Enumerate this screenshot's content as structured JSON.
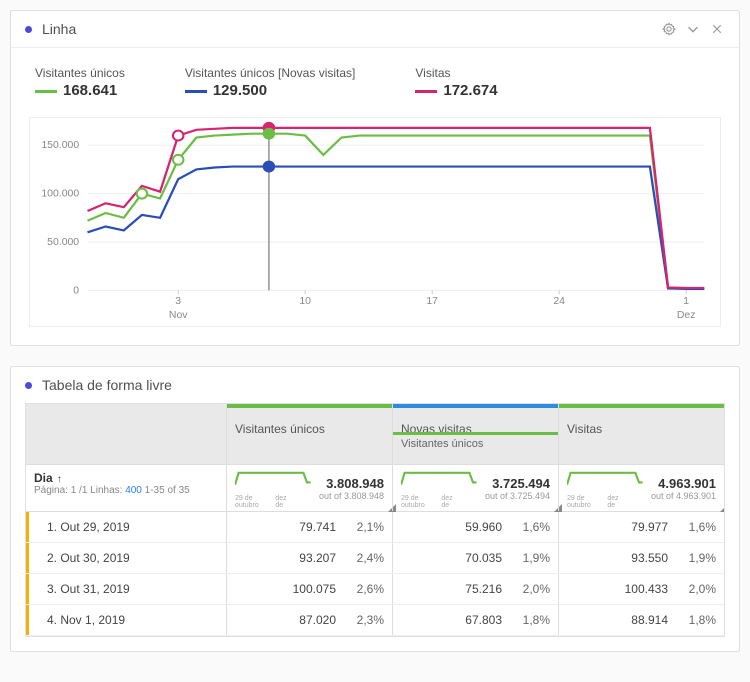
{
  "line_panel": {
    "title": "Linha",
    "dot_color": "#4b4bd8",
    "legend": [
      {
        "label": "Visitantes únicos",
        "value": "168.641",
        "color": "#6cbd45"
      },
      {
        "label": "Visitantes únicos [Novas visitas]",
        "value": "129.500",
        "color": "#2b4db8"
      },
      {
        "label": "Visitas",
        "value": "172.674",
        "color": "#d6246e"
      }
    ],
    "chart": {
      "ylim": [
        0,
        170000
      ],
      "yticks": [
        0,
        50000,
        100000,
        150000
      ],
      "ytick_labels": [
        "0",
        "50.000",
        "100.000",
        "150.000"
      ],
      "x_n": 35,
      "xticks": [
        5,
        12,
        19,
        26,
        33
      ],
      "xtick_labels": [
        "3",
        "10",
        "17",
        "24",
        "1"
      ],
      "month_labels": [
        {
          "x": 5,
          "label": "Nov"
        },
        {
          "x": 33,
          "label": "Dez"
        }
      ],
      "gridline_color": "#eeeeee",
      "cursor_x": 10,
      "cursor_color": "#999999",
      "markers": [
        {
          "series": 0,
          "x": 3,
          "y": 100000,
          "filled": false
        },
        {
          "series": 0,
          "x": 5,
          "y": 135000,
          "filled": false
        },
        {
          "series": 2,
          "x": 5,
          "y": 160000,
          "filled": false
        },
        {
          "series": 2,
          "x": 10,
          "y": 168000,
          "filled": true
        },
        {
          "series": 0,
          "x": 10,
          "y": 162000,
          "filled": true
        },
        {
          "series": 1,
          "x": 10,
          "y": 128000,
          "filled": true
        }
      ],
      "series": [
        {
          "color": "#6cbd45",
          "width": 2.2,
          "points": [
            [
              0,
              72000
            ],
            [
              1,
              80000
            ],
            [
              2,
              75000
            ],
            [
              3,
              100000
            ],
            [
              4,
              95000
            ],
            [
              5,
              135000
            ],
            [
              6,
              158000
            ],
            [
              7,
              160000
            ],
            [
              8,
              161000
            ],
            [
              9,
              162000
            ],
            [
              10,
              162000
            ],
            [
              11,
              162000
            ],
            [
              12,
              160000
            ],
            [
              13,
              140000
            ],
            [
              14,
              158000
            ],
            [
              15,
              160000
            ],
            [
              16,
              160000
            ],
            [
              17,
              160000
            ],
            [
              18,
              160000
            ],
            [
              19,
              160000
            ],
            [
              20,
              160000
            ],
            [
              21,
              160000
            ],
            [
              22,
              160000
            ],
            [
              23,
              160000
            ],
            [
              24,
              160000
            ],
            [
              25,
              160000
            ],
            [
              26,
              160000
            ],
            [
              27,
              160000
            ],
            [
              28,
              160000
            ],
            [
              29,
              160000
            ],
            [
              30,
              160000
            ],
            [
              31,
              160000
            ],
            [
              32,
              3000
            ],
            [
              33,
              2000
            ],
            [
              34,
              2000
            ]
          ]
        },
        {
          "color": "#2b4db8",
          "width": 2.2,
          "points": [
            [
              0,
              60000
            ],
            [
              1,
              66000
            ],
            [
              2,
              62000
            ],
            [
              3,
              78000
            ],
            [
              4,
              75000
            ],
            [
              5,
              115000
            ],
            [
              6,
              125000
            ],
            [
              7,
              127000
            ],
            [
              8,
              128000
            ],
            [
              9,
              128000
            ],
            [
              10,
              128000
            ],
            [
              11,
              128000
            ],
            [
              12,
              128000
            ],
            [
              13,
              128000
            ],
            [
              14,
              128000
            ],
            [
              15,
              128000
            ],
            [
              16,
              128000
            ],
            [
              17,
              128000
            ],
            [
              18,
              128000
            ],
            [
              19,
              128000
            ],
            [
              20,
              128000
            ],
            [
              21,
              128000
            ],
            [
              22,
              128000
            ],
            [
              23,
              128000
            ],
            [
              24,
              128000
            ],
            [
              25,
              128000
            ],
            [
              26,
              128000
            ],
            [
              27,
              128000
            ],
            [
              28,
              128000
            ],
            [
              29,
              128000
            ],
            [
              30,
              128000
            ],
            [
              31,
              128000
            ],
            [
              32,
              2000
            ],
            [
              33,
              1500
            ],
            [
              34,
              1500
            ]
          ]
        },
        {
          "color": "#d6246e",
          "width": 2.2,
          "points": [
            [
              0,
              82000
            ],
            [
              1,
              90000
            ],
            [
              2,
              86000
            ],
            [
              3,
              108000
            ],
            [
              4,
              102000
            ],
            [
              5,
              160000
            ],
            [
              6,
              166000
            ],
            [
              7,
              167000
            ],
            [
              8,
              168000
            ],
            [
              9,
              168000
            ],
            [
              10,
              168000
            ],
            [
              11,
              168000
            ],
            [
              12,
              168000
            ],
            [
              13,
              168000
            ],
            [
              14,
              168000
            ],
            [
              15,
              168000
            ],
            [
              16,
              168000
            ],
            [
              17,
              168000
            ],
            [
              18,
              168000
            ],
            [
              19,
              168000
            ],
            [
              20,
              168000
            ],
            [
              21,
              168000
            ],
            [
              22,
              168000
            ],
            [
              23,
              168000
            ],
            [
              24,
              168000
            ],
            [
              25,
              168000
            ],
            [
              26,
              168000
            ],
            [
              27,
              168000
            ],
            [
              28,
              168000
            ],
            [
              29,
              168000
            ],
            [
              30,
              168000
            ],
            [
              31,
              168000
            ],
            [
              32,
              3000
            ],
            [
              33,
              2500
            ],
            [
              34,
              2500
            ]
          ]
        }
      ]
    }
  },
  "table_panel": {
    "title": "Tabela de forma livre",
    "dot_color": "#4b4bd8",
    "dia_label": "Dia",
    "page_info_prefix": "Página: 1 /1",
    "rows_prefix": "Linhas:",
    "rows_link": "400",
    "rows_suffix": "1-35 of 35",
    "columns": [
      {
        "label": "Visitantes únicos",
        "sublabel": null,
        "accent": "#6cbd45",
        "sum": "3.808.948",
        "sub": "out of 3.808.948",
        "spark_pts": [
          [
            0,
            14
          ],
          [
            3,
            4
          ],
          [
            57,
            4
          ],
          [
            60,
            12
          ],
          [
            63,
            12
          ]
        ],
        "spark_tick1": "29 de outubro",
        "spark_tick2": "dez de"
      },
      {
        "label": "Novas visitas",
        "sublabel": "Visitantes únicos",
        "accent": "#2c8de0",
        "sec_accent": "#6cbd45",
        "sum": "3.725.494",
        "sub": "out of 3.725.494",
        "spark_pts": [
          [
            0,
            14
          ],
          [
            3,
            4
          ],
          [
            57,
            4
          ],
          [
            60,
            12
          ],
          [
            63,
            12
          ]
        ],
        "spark_tick1": "29 de outubro",
        "spark_tick2": "dez de"
      },
      {
        "label": "Visitas",
        "sublabel": null,
        "accent": "#6cbd45",
        "sum": "4.963.901",
        "sub": "out of 4.963.901",
        "spark_pts": [
          [
            0,
            14
          ],
          [
            3,
            4
          ],
          [
            57,
            4
          ],
          [
            60,
            12
          ],
          [
            63,
            12
          ]
        ],
        "spark_tick1": "29 de outubro",
        "spark_tick2": "dez de"
      }
    ],
    "rows": [
      {
        "label": "1.  Out 29, 2019",
        "v": [
          [
            "79.741",
            "2,1%"
          ],
          [
            "59.960",
            "1,6%"
          ],
          [
            "79.977",
            "1,6%"
          ]
        ]
      },
      {
        "label": "2.  Out 30, 2019",
        "v": [
          [
            "93.207",
            "2,4%"
          ],
          [
            "70.035",
            "1,9%"
          ],
          [
            "93.550",
            "1,9%"
          ]
        ]
      },
      {
        "label": "3.  Out 31, 2019",
        "v": [
          [
            "100.075",
            "2,6%"
          ],
          [
            "75.216",
            "2,0%"
          ],
          [
            "100.433",
            "2,0%"
          ]
        ]
      },
      {
        "label": "4.  Nov 1, 2019",
        "v": [
          [
            "87.020",
            "2,3%"
          ],
          [
            "67.803",
            "1,8%"
          ],
          [
            "88.914",
            "1,8%"
          ]
        ]
      }
    ]
  }
}
